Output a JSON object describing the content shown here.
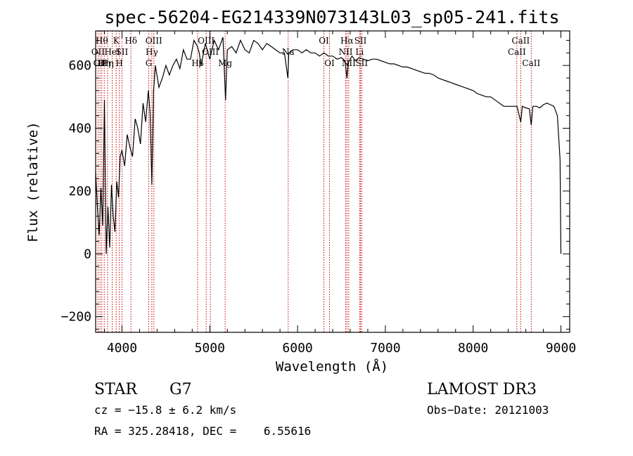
{
  "chart_data": {
    "type": "line",
    "title": "spec-56204-EG214339N073143L03_sp05-241.fits",
    "xlabel": "Wavelength (Å)",
    "ylabel": "Flux (relative)",
    "xlim": [
      3700,
      9100
    ],
    "ylim": [
      -250,
      710
    ],
    "xticks": [
      4000,
      5000,
      6000,
      7000,
      8000,
      9000
    ],
    "yticks": [
      -200,
      0,
      200,
      400,
      600
    ],
    "series": [
      {
        "name": "spectrum",
        "x": [
          3700,
          3720,
          3740,
          3760,
          3780,
          3800,
          3820,
          3840,
          3860,
          3880,
          3900,
          3920,
          3940,
          3960,
          3980,
          4000,
          4030,
          4060,
          4090,
          4120,
          4150,
          4180,
          4210,
          4240,
          4270,
          4300,
          4320,
          4340,
          4360,
          4380,
          4420,
          4460,
          4500,
          4540,
          4580,
          4620,
          4660,
          4700,
          4740,
          4780,
          4820,
          4860,
          4880,
          4900,
          4950,
          5000,
          5050,
          5100,
          5150,
          5180,
          5200,
          5250,
          5300,
          5350,
          5400,
          5450,
          5500,
          5550,
          5600,
          5650,
          5700,
          5750,
          5800,
          5850,
          5890,
          5900,
          5950,
          6000,
          6050,
          6100,
          6150,
          6200,
          6250,
          6300,
          6350,
          6400,
          6450,
          6500,
          6540,
          6563,
          6580,
          6620,
          6660,
          6700,
          6750,
          6800,
          6850,
          6900,
          6950,
          7000,
          7050,
          7100,
          7150,
          7200,
          7250,
          7300,
          7350,
          7400,
          7450,
          7500,
          7550,
          7600,
          7650,
          7700,
          7750,
          7800,
          7850,
          7900,
          7950,
          8000,
          8050,
          8100,
          8150,
          8200,
          8250,
          8300,
          8350,
          8400,
          8450,
          8500,
          8542,
          8560,
          8600,
          8640,
          8662,
          8680,
          8720,
          8760,
          8800,
          8840,
          8880,
          8920,
          8960,
          8990,
          9000
        ],
        "y": [
          260,
          150,
          60,
          210,
          90,
          490,
          0,
          150,
          20,
          220,
          120,
          70,
          230,
          180,
          310,
          330,
          280,
          380,
          340,
          310,
          430,
          400,
          350,
          480,
          420,
          520,
          450,
          220,
          520,
          600,
          530,
          560,
          600,
          570,
          600,
          620,
          590,
          650,
          620,
          620,
          680,
          660,
          640,
          600,
          670,
          620,
          680,
          650,
          690,
          490,
          650,
          660,
          640,
          680,
          650,
          640,
          680,
          670,
          650,
          670,
          660,
          650,
          640,
          640,
          560,
          640,
          650,
          650,
          640,
          650,
          640,
          640,
          630,
          640,
          630,
          630,
          620,
          625,
          615,
          560,
          610,
          630,
          615,
          625,
          620,
          615,
          620,
          620,
          615,
          610,
          605,
          605,
          600,
          595,
          595,
          590,
          585,
          580,
          575,
          575,
          570,
          560,
          555,
          550,
          545,
          540,
          535,
          530,
          525,
          520,
          510,
          505,
          500,
          500,
          490,
          480,
          470,
          470,
          470,
          470,
          420,
          470,
          465,
          462,
          410,
          470,
          470,
          465,
          475,
          480,
          475,
          470,
          440,
          300,
          0
        ]
      }
    ],
    "line_markers": [
      {
        "wavelength": 3727,
        "label": "OII",
        "row": 2
      },
      {
        "wavelength": 3750,
        "label": "OII",
        "row": 3
      },
      {
        "wavelength": 3770,
        "label": "Hθ",
        "row": 1
      },
      {
        "wavelength": 3798,
        "label": "Hη",
        "row": 3
      },
      {
        "wavelength": 3835,
        "label": "Hη",
        "row": 3
      },
      {
        "wavelength": 3889,
        "label": "HeI",
        "row": 2
      },
      {
        "wavelength": 3934,
        "label": "K",
        "row": 1
      },
      {
        "wavelength": 3969,
        "label": "H",
        "row": 3
      },
      {
        "wavelength": 4000,
        "label": "SII",
        "row": 2
      },
      {
        "wavelength": 4102,
        "label": "Hδ",
        "row": 1
      },
      {
        "wavelength": 4305,
        "label": "G",
        "row": 3
      },
      {
        "wavelength": 4340,
        "label": "Hγ",
        "row": 2
      },
      {
        "wavelength": 4363,
        "label": "OIII",
        "row": 1
      },
      {
        "wavelength": 4861,
        "label": "Hβ",
        "row": 3
      },
      {
        "wavelength": 4959,
        "label": "OIII",
        "row": 1
      },
      {
        "wavelength": 5007,
        "label": "OIII",
        "row": 2
      },
      {
        "wavelength": 5175,
        "label": "Mg",
        "row": 3
      },
      {
        "wavelength": 5893,
        "label": "Na",
        "row": 2
      },
      {
        "wavelength": 6300,
        "label": "OI",
        "row": 1
      },
      {
        "wavelength": 6364,
        "label": "OI",
        "row": 3
      },
      {
        "wavelength": 6548,
        "label": "NII",
        "row": 2
      },
      {
        "wavelength": 6563,
        "label": "Hα",
        "row": 1
      },
      {
        "wavelength": 6583,
        "label": "NII",
        "row": 3
      },
      {
        "wavelength": 6707,
        "label": "Li",
        "row": 2
      },
      {
        "wavelength": 6717,
        "label": "SII",
        "row": 1
      },
      {
        "wavelength": 6731,
        "label": "SII",
        "row": 3
      },
      {
        "wavelength": 8498,
        "label": "CaII",
        "row": 2
      },
      {
        "wavelength": 8542,
        "label": "CaII",
        "row": 1
      },
      {
        "wavelength": 8662,
        "label": "CaII",
        "row": 3
      }
    ]
  },
  "info": {
    "object_class": "STAR",
    "subclass": "G7",
    "survey": "LAMOST DR3",
    "cz": "cz = −15.8 ± 6.2 km/s",
    "obs_date": "Obs−Date: 20121003",
    "coords": "RA = 325.28418, DEC =    6.55616"
  },
  "colors": {
    "marker_line": "#cc0000",
    "spectrum": "#000000"
  }
}
